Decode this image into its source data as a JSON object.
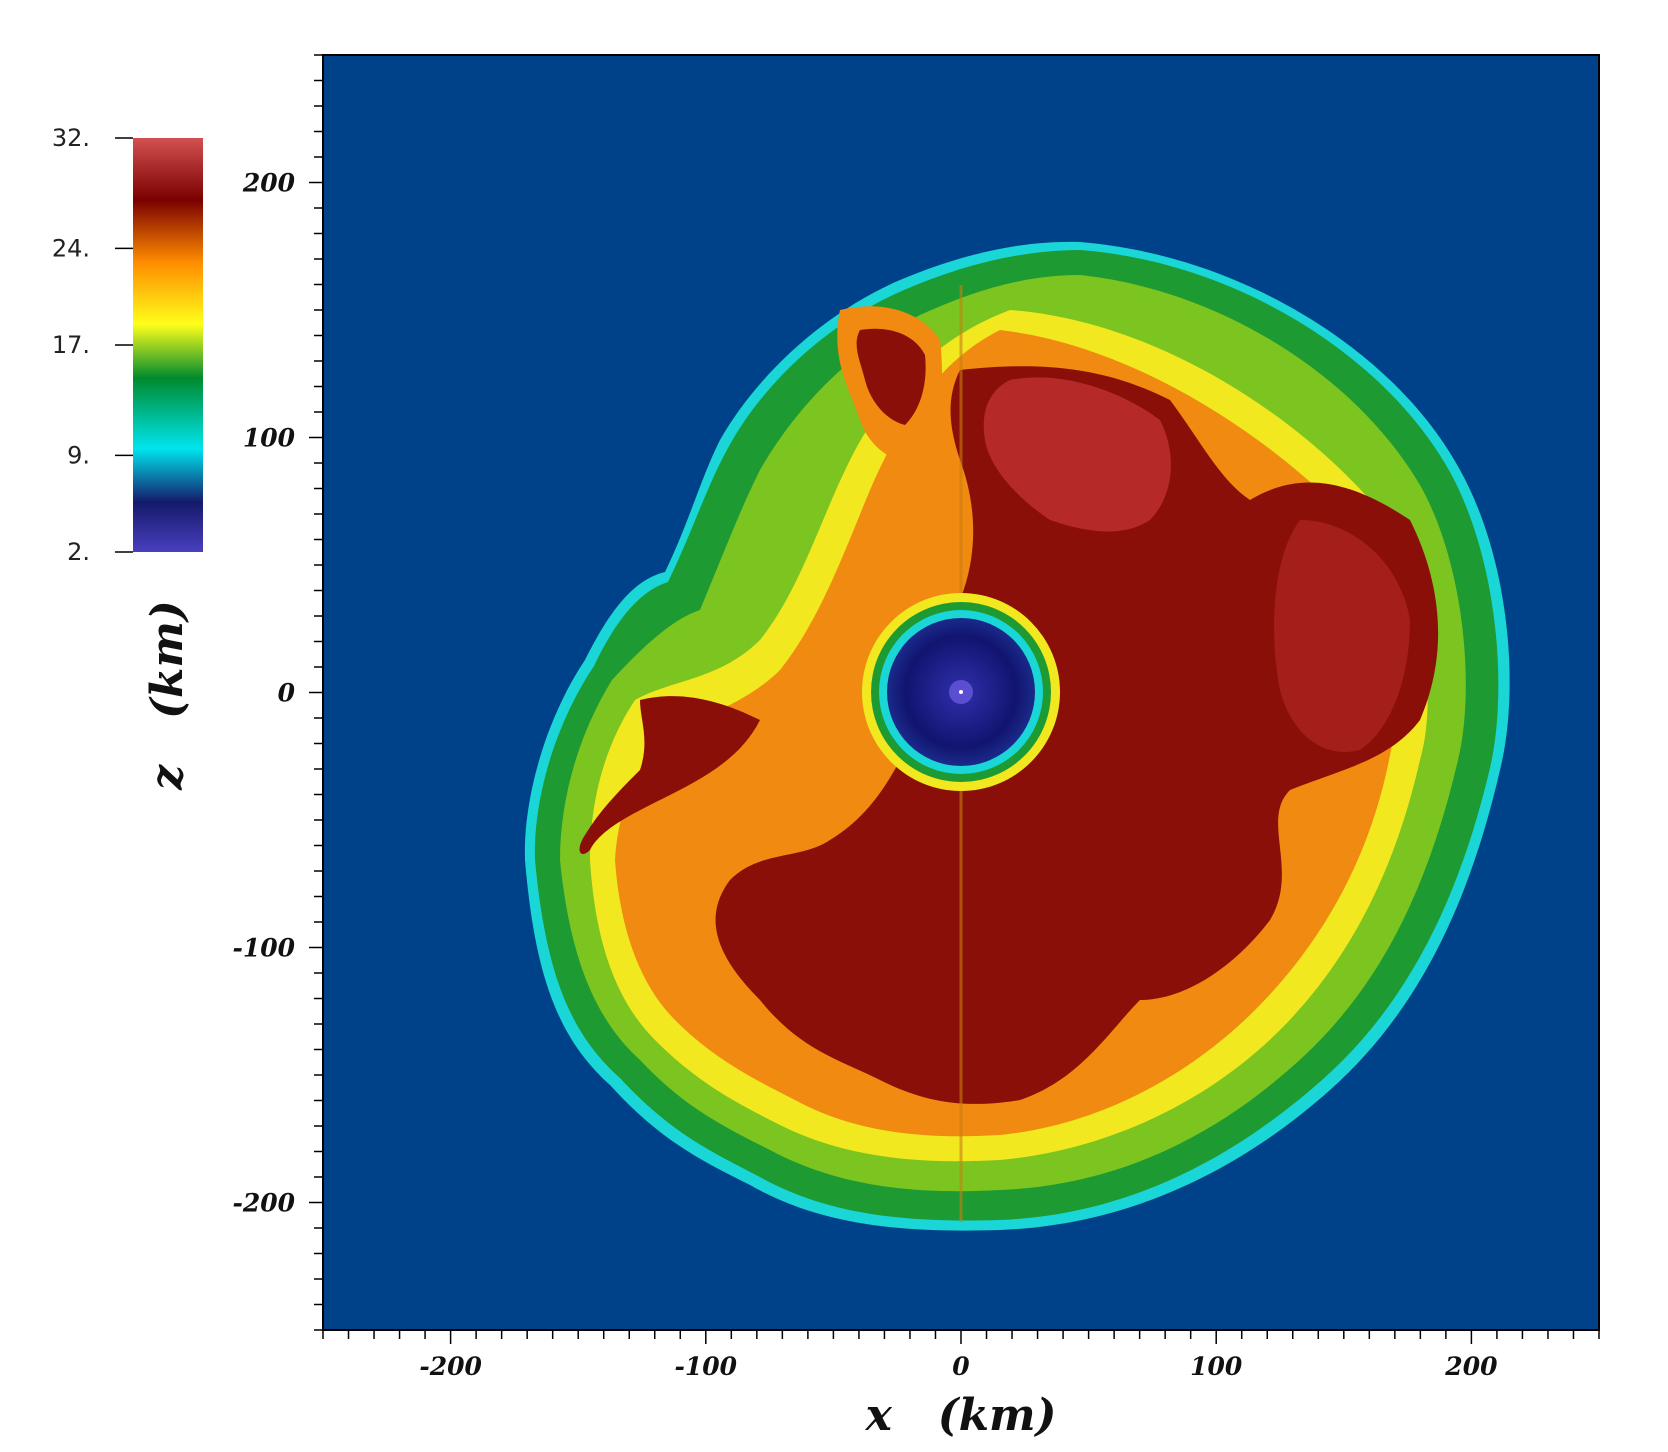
{
  "chart_data": {
    "type": "heatmap",
    "title": "",
    "xlabel": "x   (km)",
    "ylabel": "z   (km)",
    "xlim": [
      -250,
      250
    ],
    "ylim": [
      -250,
      250
    ],
    "x_ticks": [
      -200,
      -100,
      0,
      100,
      200
    ],
    "y_ticks": [
      200,
      100,
      0,
      -100,
      -200
    ],
    "x_tick_labels": [
      "-200",
      "-100",
      "0",
      "100",
      "200"
    ],
    "y_tick_labels": [
      "200",
      "100",
      "0",
      "-100",
      "-200"
    ],
    "colorbar": {
      "range": [
        2,
        32
      ],
      "ticks": [
        32,
        24,
        17,
        9,
        2
      ],
      "tick_labels": [
        "32.",
        "24.",
        "17.",
        "9.",
        "2."
      ],
      "colors": [
        "#4a3fbf",
        "#141a6a",
        "#00e5ee",
        "#008a2e",
        "#ffff1a",
        "#ff8c00",
        "#7a0000",
        "#d45050"
      ]
    },
    "background_color": "#00428a",
    "features": {
      "shock_front_outer_radius_km": [
        170,
        220
      ],
      "central_core_radius_km": 30,
      "center_km": [
        0,
        0
      ]
    },
    "grid": false
  }
}
